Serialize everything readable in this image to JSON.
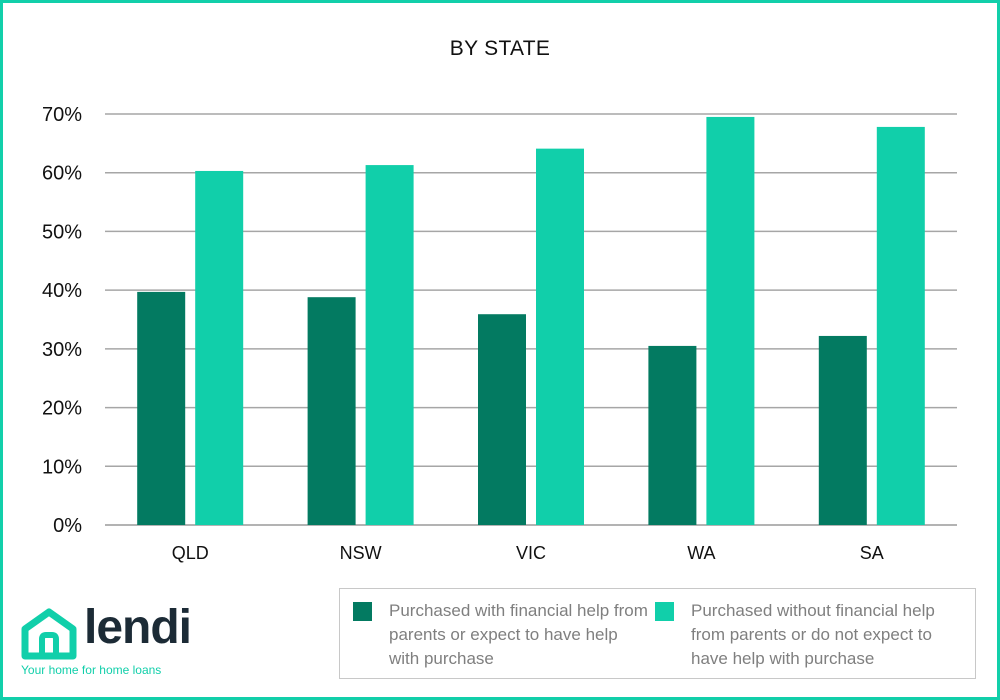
{
  "chart_data": {
    "type": "bar",
    "title": "BY STATE",
    "categories": [
      "QLD",
      "NSW",
      "VIC",
      "WA",
      "SA"
    ],
    "series": [
      {
        "name": "Purchased with financial help from parents or expect to have help with purchase",
        "color": "#037a61",
        "values": [
          39.7,
          38.8,
          35.9,
          30.5,
          32.2
        ]
      },
      {
        "name": "Purchased without  financial help from parents or do not expect to have help with purchase",
        "color": "#11cfaa",
        "values": [
          60.3,
          61.3,
          64.1,
          69.5,
          67.8
        ]
      }
    ],
    "ylim": [
      0,
      70
    ],
    "yticks": [
      "0%",
      "10%",
      "20%",
      "30%",
      "40%",
      "50%",
      "60%",
      "70%"
    ],
    "grid": true,
    "legend_position": "bottom-right"
  },
  "legend": {
    "items": [
      {
        "label": "Purchased with financial help from parents or expect to have help with purchase",
        "color": "#037a61"
      },
      {
        "label": "Purchased without  financial help from parents or do not expect to have help with purchase",
        "color": "#11cfaa"
      }
    ]
  },
  "logo": {
    "wordmark": "lendi",
    "tagline": "Your home for home loans",
    "accent_color": "#11cfaa",
    "icon": "house-icon"
  }
}
